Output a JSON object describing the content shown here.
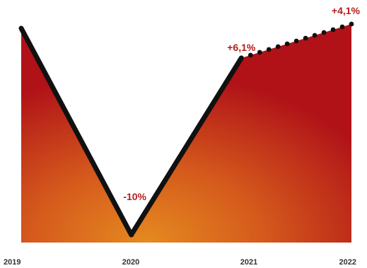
{
  "chart_data": {
    "type": "line",
    "categories": [
      "2019",
      "2020",
      "2021",
      "2022"
    ],
    "values": [
      0,
      -10,
      6.1,
      4.1
    ],
    "data_labels": [
      "",
      "-10%",
      "+6,1%",
      "+4,1%"
    ],
    "segment_styles": [
      "solid",
      "solid",
      "dotted"
    ],
    "colors": {
      "line": "#111111",
      "label": "#b51e1a",
      "gradient_edge": "#b01218",
      "gradient_center": "#e58a20"
    },
    "grid": false,
    "legend": "none"
  }
}
